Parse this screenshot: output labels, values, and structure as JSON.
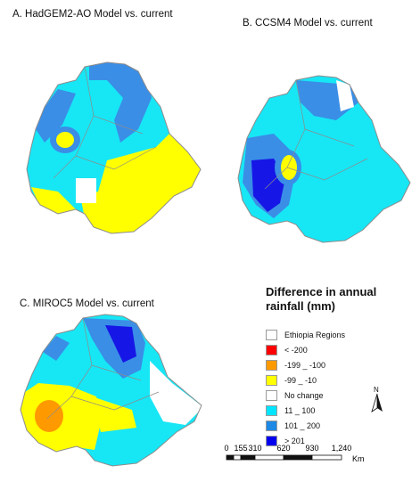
{
  "panels": {
    "a_title": "A. HadGEM2-AO Model vs. current",
    "b_title": "B. CCSM4 Model vs. current",
    "c_title": "C. MIROC5 Model vs. current"
  },
  "legend": {
    "title_line1": "Difference in annual",
    "title_line2": "rainfall (mm)",
    "items": [
      {
        "label": "Ethiopia Regions",
        "color": "#ffffff"
      },
      {
        "label": "< -200",
        "color": "#ff0000"
      },
      {
        "label": "-199 _ -100",
        "color": "#ff9900"
      },
      {
        "label": "-99 _ -10",
        "color": "#ffff00"
      },
      {
        "label": "No change",
        "color": "#ffffff"
      },
      {
        "label": "11 _ 100",
        "color": "#00e5ff"
      },
      {
        "label": "101 _ 200",
        "color": "#1e88e5"
      },
      {
        "label": "> 201",
        "color": "#0000ee"
      }
    ]
  },
  "north_arrow": {
    "label": "N"
  },
  "scale_bar": {
    "ticks": [
      "0",
      "155",
      "310",
      "620",
      "930",
      "1,240"
    ],
    "unit": "Km"
  },
  "colors": {
    "cyan": "#17e6f5",
    "mid_blue": "#3a8ee6",
    "dark_blue": "#1616e6",
    "yellow": "#ffff00",
    "orange": "#ff9900",
    "boundary": "#8c8c8c"
  }
}
